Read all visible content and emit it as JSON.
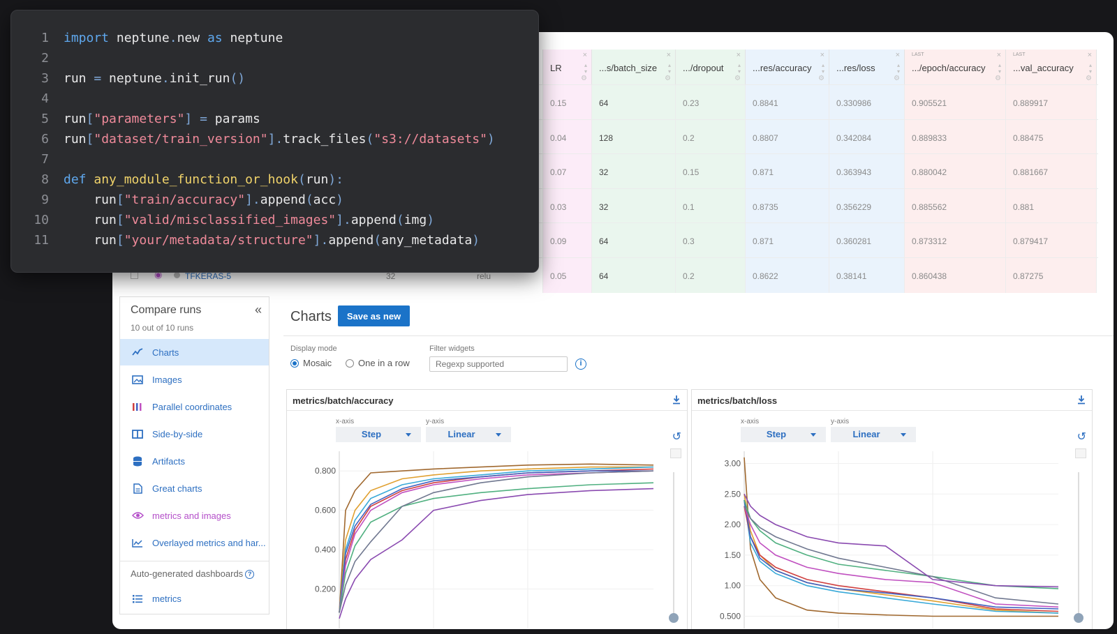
{
  "code": {
    "lines": [
      {
        "n": "1",
        "tokens": [
          {
            "t": "kw",
            "v": "import"
          },
          {
            "t": "",
            "v": " neptune"
          },
          {
            "t": "pu",
            "v": "."
          },
          {
            "t": "",
            "v": "new "
          },
          {
            "t": "kw",
            "v": "as"
          },
          {
            "t": "",
            "v": " neptune"
          }
        ]
      },
      {
        "n": "2",
        "tokens": []
      },
      {
        "n": "3",
        "tokens": [
          {
            "t": "",
            "v": "run "
          },
          {
            "t": "pu",
            "v": "="
          },
          {
            "t": "",
            "v": " neptune"
          },
          {
            "t": "pu",
            "v": "."
          },
          {
            "t": "",
            "v": "init_run"
          },
          {
            "t": "pu",
            "v": "()"
          }
        ]
      },
      {
        "n": "4",
        "tokens": []
      },
      {
        "n": "5",
        "tokens": [
          {
            "t": "",
            "v": "run"
          },
          {
            "t": "pu",
            "v": "["
          },
          {
            "t": "str",
            "v": "\"parameters\""
          },
          {
            "t": "pu",
            "v": "]"
          },
          {
            "t": "",
            "v": " "
          },
          {
            "t": "pu",
            "v": "="
          },
          {
            "t": "",
            "v": " params"
          }
        ]
      },
      {
        "n": "6",
        "tokens": [
          {
            "t": "",
            "v": "run"
          },
          {
            "t": "pu",
            "v": "["
          },
          {
            "t": "str",
            "v": "\"dataset/train_version\""
          },
          {
            "t": "pu",
            "v": "]."
          },
          {
            "t": "",
            "v": "track_files"
          },
          {
            "t": "pu",
            "v": "("
          },
          {
            "t": "str",
            "v": "\"s3://datasets\""
          },
          {
            "t": "pu",
            "v": ")"
          }
        ]
      },
      {
        "n": "7",
        "tokens": []
      },
      {
        "n": "8",
        "tokens": [
          {
            "t": "kw",
            "v": "def"
          },
          {
            "t": "",
            "v": " "
          },
          {
            "t": "fn",
            "v": "any_module_function_or_hook"
          },
          {
            "t": "pu",
            "v": "("
          },
          {
            "t": "",
            "v": "run"
          },
          {
            "t": "pu",
            "v": "):"
          }
        ]
      },
      {
        "n": "9",
        "tokens": [
          {
            "t": "",
            "v": "    run"
          },
          {
            "t": "pu",
            "v": "["
          },
          {
            "t": "str",
            "v": "\"train/accuracy\""
          },
          {
            "t": "pu",
            "v": "]."
          },
          {
            "t": "",
            "v": "append"
          },
          {
            "t": "pu",
            "v": "("
          },
          {
            "t": "",
            "v": "acc"
          },
          {
            "t": "pu",
            "v": ")"
          }
        ]
      },
      {
        "n": "10",
        "tokens": [
          {
            "t": "",
            "v": "    run"
          },
          {
            "t": "pu",
            "v": "["
          },
          {
            "t": "str",
            "v": "\"valid/misclassified_images\""
          },
          {
            "t": "pu",
            "v": "]."
          },
          {
            "t": "",
            "v": "append"
          },
          {
            "t": "pu",
            "v": "("
          },
          {
            "t": "",
            "v": "img"
          },
          {
            "t": "pu",
            "v": ")"
          }
        ]
      },
      {
        "n": "11",
        "tokens": [
          {
            "t": "",
            "v": "    run"
          },
          {
            "t": "pu",
            "v": "["
          },
          {
            "t": "str",
            "v": "\"your/metadata/structure\""
          },
          {
            "t": "pu",
            "v": "]."
          },
          {
            "t": "",
            "v": "append"
          },
          {
            "t": "pu",
            "v": "("
          },
          {
            "t": "",
            "v": "any_metadata"
          },
          {
            "t": "pu",
            "v": ")"
          }
        ]
      }
    ]
  },
  "table": {
    "columns": [
      {
        "label": "LR",
        "tint": "pink",
        "tag": "",
        "badge": "LAST",
        "show_badge": false
      },
      {
        "label": "...s/batch_size",
        "tint": "green",
        "tag": "",
        "badge": "LAST",
        "show_badge": false
      },
      {
        "label": ".../dropout",
        "tint": "green",
        "tag": "",
        "badge": "LAST",
        "show_badge": false
      },
      {
        "label": "...res/accuracy",
        "tint": "blue",
        "tag": "",
        "badge": "LAST",
        "show_badge": false
      },
      {
        "label": "...res/loss",
        "tint": "blue",
        "tag": "",
        "badge": "LAST",
        "show_badge": false
      },
      {
        "label": ".../epoch/accuracy",
        "tint": "red",
        "tag": "",
        "badge": "LAST",
        "show_badge": true
      },
      {
        "label": "...val_accuracy",
        "tint": "red",
        "tag": "",
        "badge": "LAST",
        "show_badge": true
      }
    ],
    "rows": [
      [
        "0.15",
        "64",
        "0.23",
        "0.8841",
        "0.330986",
        "0.905521",
        "0.889917"
      ],
      [
        "0.04",
        "128",
        "0.2",
        "0.8807",
        "0.342084",
        "0.889833",
        "0.88475"
      ],
      [
        "0.07",
        "32",
        "0.15",
        "0.871",
        "0.363943",
        "0.880042",
        "0.881667"
      ],
      [
        "0.03",
        "32",
        "0.1",
        "0.8735",
        "0.356229",
        "0.885562",
        "0.881"
      ],
      [
        "0.09",
        "64",
        "0.3",
        "0.871",
        "0.360281",
        "0.873312",
        "0.879417"
      ],
      [
        "0.05",
        "64",
        "0.2",
        "0.8622",
        "0.38141",
        "0.860438",
        "0.87275"
      ]
    ],
    "partial_row": {
      "name": "TFKERAS-5",
      "batch": "32",
      "activation": "relu"
    }
  },
  "sidebar": {
    "title": "Compare runs",
    "subtitle": "10 out of 10 runs",
    "items": [
      {
        "label": "Charts",
        "icon": "line-chart-icon",
        "active": true,
        "color": "#2d6fc1"
      },
      {
        "label": "Images",
        "icon": "image-icon",
        "active": false,
        "color": "#2d6fc1"
      },
      {
        "label": "Parallel coordinates",
        "icon": "parallel-coordinates-icon",
        "active": false,
        "color": "#2d6fc1"
      },
      {
        "label": "Side-by-side",
        "icon": "columns-icon",
        "active": false,
        "color": "#2d6fc1"
      },
      {
        "label": "Artifacts",
        "icon": "database-icon",
        "active": false,
        "color": "#2d6fc1"
      },
      {
        "label": "Great charts",
        "icon": "document-icon",
        "active": false,
        "color": "#2d6fc1"
      },
      {
        "label": "metrics and images",
        "icon": "eye-icon",
        "active": false,
        "color": "#b44fc9"
      },
      {
        "label": "Overlayed metrics and har...",
        "icon": "area-chart-icon",
        "active": false,
        "color": "#2d6fc1"
      }
    ],
    "auto_label": "Auto-generated dashboards",
    "auto_items": [
      {
        "label": "metrics",
        "icon": "list-icon"
      }
    ]
  },
  "charts_view": {
    "title": "Charts",
    "save_label": "Save as new",
    "display_mode_label": "Display mode",
    "modes": [
      {
        "label": "Mosaic",
        "selected": true
      },
      {
        "label": "One in a row",
        "selected": false
      }
    ],
    "filter_label": "Filter widgets",
    "filter_placeholder": "Regexp supported"
  },
  "chart_data": [
    {
      "type": "line",
      "title": "metrics/batch/accuracy",
      "x_axis_label": "x-axis",
      "y_axis_label": "y-axis",
      "x_mode": "Step",
      "y_mode": "Linear",
      "ylim": [
        0.0,
        0.9
      ],
      "yticks": [
        "0.200",
        "0.400",
        "0.600",
        "0.800"
      ],
      "x": [
        0,
        0.02,
        0.05,
        0.1,
        0.2,
        0.3,
        0.45,
        0.6,
        0.8,
        1.0
      ],
      "series": [
        {
          "color": "#a0682e",
          "values": [
            0.08,
            0.6,
            0.7,
            0.79,
            0.8,
            0.81,
            0.82,
            0.83,
            0.835,
            0.83
          ]
        },
        {
          "color": "#e0a030",
          "values": [
            0.08,
            0.45,
            0.6,
            0.7,
            0.76,
            0.78,
            0.8,
            0.81,
            0.82,
            0.82
          ]
        },
        {
          "color": "#38a9d8",
          "values": [
            0.08,
            0.4,
            0.55,
            0.66,
            0.73,
            0.76,
            0.78,
            0.8,
            0.81,
            0.82
          ]
        },
        {
          "color": "#d04040",
          "values": [
            0.08,
            0.35,
            0.5,
            0.62,
            0.7,
            0.74,
            0.77,
            0.79,
            0.8,
            0.81
          ]
        },
        {
          "color": "#4060c0",
          "values": [
            0.08,
            0.38,
            0.52,
            0.63,
            0.71,
            0.75,
            0.77,
            0.79,
            0.8,
            0.8
          ]
        },
        {
          "color": "#c050c0",
          "values": [
            0.08,
            0.32,
            0.48,
            0.6,
            0.69,
            0.73,
            0.76,
            0.78,
            0.79,
            0.8
          ]
        },
        {
          "color": "#50b080",
          "values": [
            0.08,
            0.28,
            0.42,
            0.54,
            0.62,
            0.66,
            0.69,
            0.71,
            0.73,
            0.74
          ]
        },
        {
          "color": "#707890",
          "values": [
            0.08,
            0.22,
            0.34,
            0.44,
            0.62,
            0.69,
            0.74,
            0.77,
            0.79,
            0.8
          ]
        },
        {
          "color": "#8a4ab0",
          "values": [
            0.05,
            0.15,
            0.25,
            0.35,
            0.45,
            0.6,
            0.65,
            0.68,
            0.7,
            0.71
          ]
        }
      ]
    },
    {
      "type": "line",
      "title": "metrics/batch/loss",
      "x_axis_label": "x-axis",
      "y_axis_label": "y-axis",
      "x_mode": "Step",
      "y_mode": "Linear",
      "ylim": [
        0.3,
        3.2
      ],
      "yticks": [
        "0.500",
        "1.00",
        "1.50",
        "2.00",
        "2.50",
        "3.00"
      ],
      "x": [
        0,
        0.02,
        0.05,
        0.1,
        0.2,
        0.3,
        0.45,
        0.6,
        0.8,
        1.0
      ],
      "series": [
        {
          "color": "#a0682e",
          "values": [
            3.1,
            1.6,
            1.1,
            0.8,
            0.6,
            0.55,
            0.52,
            0.5,
            0.5,
            0.5
          ]
        },
        {
          "color": "#e0a030",
          "values": [
            2.5,
            1.9,
            1.5,
            1.25,
            1.05,
            0.95,
            0.85,
            0.75,
            0.6,
            0.55
          ]
        },
        {
          "color": "#38a9d8",
          "values": [
            2.4,
            1.7,
            1.4,
            1.2,
            1.0,
            0.9,
            0.8,
            0.7,
            0.58,
            0.55
          ]
        },
        {
          "color": "#d04040",
          "values": [
            2.3,
            1.8,
            1.5,
            1.3,
            1.1,
            1.0,
            0.9,
            0.8,
            0.62,
            0.58
          ]
        },
        {
          "color": "#4060c0",
          "values": [
            2.4,
            1.8,
            1.45,
            1.25,
            1.05,
            0.95,
            0.88,
            0.8,
            0.65,
            0.62
          ]
        },
        {
          "color": "#c050c0",
          "values": [
            2.3,
            2.0,
            1.7,
            1.5,
            1.3,
            1.2,
            1.1,
            1.05,
            0.7,
            0.65
          ]
        },
        {
          "color": "#50b080",
          "values": [
            2.4,
            2.1,
            1.9,
            1.7,
            1.5,
            1.35,
            1.25,
            1.15,
            1.0,
            0.95
          ]
        },
        {
          "color": "#707890",
          "values": [
            2.3,
            2.1,
            1.95,
            1.8,
            1.6,
            1.45,
            1.3,
            1.15,
            0.8,
            0.7
          ]
        },
        {
          "color": "#8a4ab0",
          "values": [
            2.5,
            2.3,
            2.15,
            2.0,
            1.8,
            1.7,
            1.65,
            1.1,
            1.0,
            0.98
          ]
        }
      ]
    }
  ]
}
